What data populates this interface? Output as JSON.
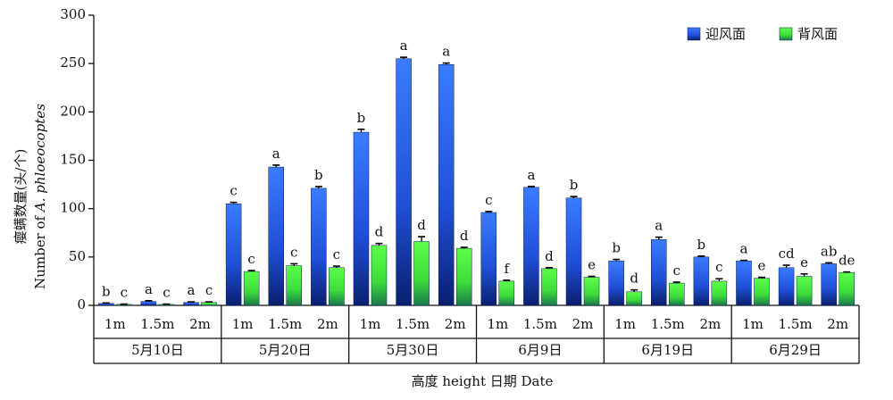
{
  "chart_data": {
    "type": "bar",
    "y_label_cn": "瘿螨数量(头/个)",
    "y_label_en": "Number of",
    "y_label_species": "A. phloeocoptes",
    "x_label": "高度 height 日期 Date",
    "categories": [
      "1m",
      "1.5m",
      "2m",
      "1m",
      "1.5m",
      "2m",
      "1m",
      "1.5m",
      "2m",
      "1m",
      "1.5m",
      "2m",
      "1m",
      "1.5m",
      "2m",
      "1m",
      "1.5m",
      "2m"
    ],
    "groups": [
      "5月10日",
      "5月20日",
      "5月30日",
      "6月9日",
      "6月19日",
      "6月29日"
    ],
    "series": [
      {
        "name": "迎风面",
        "color": "#1f4fd6",
        "values": [
          2,
          4,
          3,
          105,
          143,
          121,
          179,
          255,
          249,
          96,
          122,
          111,
          46,
          68,
          50,
          46,
          39,
          43
        ],
        "errors": [
          0.5,
          0.8,
          0.6,
          1.5,
          2,
          1.8,
          3,
          1.5,
          1.5,
          1,
          1,
          1.5,
          1.5,
          2.5,
          1,
          0.5,
          2.5,
          1
        ],
        "letters": [
          "b",
          "a",
          "a",
          "c",
          "a",
          "b",
          "b",
          "a",
          "a",
          "c",
          "a",
          "b",
          "b",
          "a",
          "b",
          "a",
          "cd",
          "ab"
        ]
      },
      {
        "name": "背风面",
        "color": "#3ddc3a",
        "values": [
          1,
          1,
          3,
          35,
          41,
          39,
          62,
          66,
          59,
          25,
          38,
          29,
          14,
          23,
          25,
          28,
          30,
          34
        ],
        "errors": [
          0.3,
          0.3,
          0.6,
          1,
          2,
          1.5,
          2,
          5,
          1,
          1,
          1,
          1,
          2,
          1,
          2.5,
          1,
          2.5,
          0.5
        ],
        "letters": [
          "c",
          "c",
          "c",
          "c",
          "c",
          "c",
          "d",
          "d",
          "d",
          "f",
          "d",
          "e",
          "d",
          "c",
          "c",
          "e",
          "e",
          "de"
        ]
      }
    ],
    "ylim": [
      0,
      300
    ],
    "yticks": [
      0,
      50,
      100,
      150,
      200,
      250,
      300
    ],
    "legend": "top-right"
  }
}
